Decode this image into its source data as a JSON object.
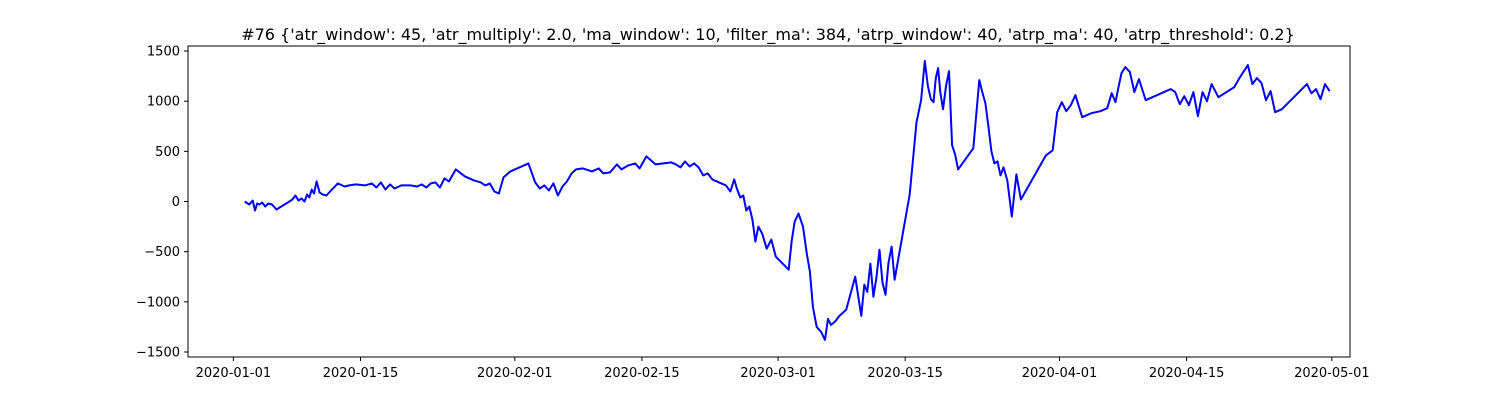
{
  "chart_data": {
    "type": "line",
    "title": "#76 {'atr_window': 45, 'atr_multiply': 2.0, 'ma_window': 10, 'filter_ma': 384, 'atrp_window': 40, 'atrp_ma': 40, 'atrp_threshold': 0.2}",
    "xlabel": "",
    "ylabel": "",
    "x_axis_type": "date",
    "xlim": [
      "2019-12-27",
      "2020-05-03"
    ],
    "ylim": [
      -1550,
      1550
    ],
    "xticks": [
      "2020-01-01",
      "2020-01-15",
      "2020-02-01",
      "2020-02-15",
      "2020-03-01",
      "2020-03-15",
      "2020-04-01",
      "2020-04-15",
      "2020-05-01"
    ],
    "yticks": [
      -1500,
      -1000,
      -500,
      0,
      500,
      1000,
      1500
    ],
    "ytick_labels": [
      "−1500",
      "−1000",
      "−500",
      "0",
      "500",
      "1000",
      "1500"
    ],
    "grid": false,
    "legend": "none",
    "color": "#0000ff",
    "series": [
      {
        "x": [
          "2020-01-02",
          "2020-01-02",
          "2020-01-03",
          "2020-01-03",
          "2020-01-03",
          "2020-01-03",
          "2020-01-04",
          "2020-01-04",
          "2020-01-04",
          "2020-01-05",
          "2020-01-05",
          "2020-01-07",
          "2020-01-07",
          "2020-01-07",
          "2020-01-08",
          "2020-01-08",
          "2020-01-08",
          "2020-01-09",
          "2020-01-09",
          "2020-01-09",
          "2020-01-09",
          "2020-01-10",
          "2020-01-10",
          "2020-01-10",
          "2020-01-11",
          "2020-01-11",
          "2020-01-12",
          "2020-01-13",
          "2020-01-13",
          "2020-01-14",
          "2020-01-15",
          "2020-01-16",
          "2020-01-16",
          "2020-01-17",
          "2020-01-17",
          "2020-01-18",
          "2020-01-18",
          "2020-01-19",
          "2020-01-20",
          "2020-01-21",
          "2020-01-21",
          "2020-01-22",
          "2020-01-22",
          "2020-01-23",
          "2020-01-23",
          "2020-01-24",
          "2020-01-24",
          "2020-01-25",
          "2020-01-26",
          "2020-01-27",
          "2020-01-28",
          "2020-01-28",
          "2020-01-29",
          "2020-01-29",
          "2020-01-30",
          "2020-01-30",
          "2020-01-31",
          "2020-02-02",
          "2020-02-03",
          "2020-02-03",
          "2020-02-04",
          "2020-02-04",
          "2020-02-05",
          "2020-02-05",
          "2020-02-06",
          "2020-02-06",
          "2020-02-07",
          "2020-02-07",
          "2020-02-08",
          "2020-02-09",
          "2020-02-10",
          "2020-02-10",
          "2020-02-11",
          "2020-02-12",
          "2020-02-12",
          "2020-02-13",
          "2020-02-14",
          "2020-02-14",
          "2020-02-15",
          "2020-02-16",
          "2020-02-18",
          "2020-02-18",
          "2020-02-19",
          "2020-02-19",
          "2020-02-20",
          "2020-02-20",
          "2020-02-21",
          "2020-02-21",
          "2020-02-22",
          "2020-02-22",
          "2020-02-24",
          "2020-02-24",
          "2020-02-25",
          "2020-02-25",
          "2020-02-25",
          "2020-02-26",
          "2020-02-26",
          "2020-02-26",
          "2020-02-27",
          "2020-02-27",
          "2020-02-27",
          "2020-02-28",
          "2020-02-28",
          "2020-02-29",
          "2020-02-29",
          "2020-03-02",
          "2020-03-02",
          "2020-03-02",
          "2020-03-03",
          "2020-03-03",
          "2020-03-04",
          "2020-03-04",
          "2020-03-04",
          "2020-03-05",
          "2020-03-05",
          "2020-03-06",
          "2020-03-06",
          "2020-03-06",
          "2020-03-07",
          "2020-03-07",
          "2020-03-08",
          "2020-03-09",
          "2020-03-10",
          "2020-03-10",
          "2020-03-10",
          "2020-03-11",
          "2020-03-11",
          "2020-03-11",
          "2020-03-12",
          "2020-03-12",
          "2020-03-12",
          "2020-03-13",
          "2020-03-13",
          "2020-03-13",
          "2020-03-15",
          "2020-03-16",
          "2020-03-16",
          "2020-03-17",
          "2020-03-17",
          "2020-03-17",
          "2020-03-18",
          "2020-03-18",
          "2020-03-18",
          "2020-03-18",
          "2020-03-19",
          "2020-03-19",
          "2020-03-19",
          "2020-03-20",
          "2020-03-20",
          "2020-03-20",
          "2020-03-22",
          "2020-03-23",
          "2020-03-23",
          "2020-03-23",
          "2020-03-24",
          "2020-03-24",
          "2020-03-24",
          "2020-03-25",
          "2020-03-25",
          "2020-03-25",
          "2020-03-26",
          "2020-03-26",
          "2020-03-27",
          "2020-03-27",
          "2020-03-30",
          "2020-03-31",
          "2020-03-31",
          "2020-04-01",
          "2020-04-01",
          "2020-04-02",
          "2020-04-02",
          "2020-04-03",
          "2020-04-04",
          "2020-04-05",
          "2020-04-06",
          "2020-04-06",
          "2020-04-07",
          "2020-04-07",
          "2020-04-07",
          "2020-04-08",
          "2020-04-08",
          "2020-04-09",
          "2020-04-09",
          "2020-04-10",
          "2020-04-13",
          "2020-04-13",
          "2020-04-14",
          "2020-04-14",
          "2020-04-15",
          "2020-04-15",
          "2020-04-16",
          "2020-04-16",
          "2020-04-17",
          "2020-04-17",
          "2020-04-18",
          "2020-04-20",
          "2020-04-20",
          "2020-04-21",
          "2020-04-21",
          "2020-04-22",
          "2020-04-22",
          "2020-04-23",
          "2020-04-23",
          "2020-04-24",
          "2020-04-24",
          "2020-04-25",
          "2020-04-28",
          "2020-04-28",
          "2020-04-29",
          "2020-04-29",
          "2020-04-30",
          "2020-04-30"
        ],
        "y": [
          0,
          -30,
          10,
          -90,
          -20,
          -30,
          -10,
          -50,
          -20,
          -30,
          -80,
          0,
          20,
          60,
          10,
          30,
          0,
          70,
          40,
          120,
          80,
          200,
          90,
          70,
          60,
          110,
          180,
          150,
          160,
          170,
          160,
          180,
          140,
          190,
          120,
          170,
          130,
          160,
          160,
          150,
          170,
          140,
          180,
          190,
          140,
          230,
          200,
          320,
          250,
          210,
          190,
          160,
          180,
          100,
          80,
          240,
          300,
          380,
          190,
          130,
          160,
          110,
          180,
          60,
          150,
          200,
          280,
          320,
          330,
          300,
          330,
          280,
          290,
          370,
          320,
          360,
          380,
          330,
          450,
          370,
          390,
          370,
          340,
          400,
          350,
          380,
          340,
          260,
          280,
          220,
          160,
          100,
          220,
          120,
          40,
          60,
          -90,
          -50,
          -180,
          -400,
          -250,
          -320,
          -470,
          -380,
          -550,
          -680,
          -390,
          -200,
          -120,
          -250,
          -520,
          -700,
          -1050,
          -1250,
          -1300,
          -1380,
          -1170,
          -1230,
          -1200,
          -1140,
          -1080,
          -750,
          -1140,
          -830,
          -900,
          -620,
          -950,
          -760,
          -480,
          -810,
          -930,
          -610,
          -450,
          -780,
          70,
          790,
          1010,
          1400,
          1150,
          1020,
          990,
          1230,
          1330,
          1090,
          920,
          1150,
          1300,
          560,
          470,
          320,
          530,
          1210,
          1090,
          980,
          750,
          500,
          380,
          400,
          260,
          340,
          210,
          -150,
          270,
          20,
          460,
          510,
          890,
          990,
          900,
          960,
          1060,
          840,
          880,
          900,
          930,
          1080,
          990,
          1140,
          1280,
          1340,
          1290,
          1090,
          1220,
          1010,
          1120,
          1090,
          970,
          1050,
          960,
          1090,
          850,
          1090,
          1000,
          1170,
          1040,
          1140,
          1220,
          1290,
          1360,
          1170,
          1230,
          1180,
          1010,
          1100,
          890,
          920,
          1170,
          1080,
          1120,
          1020,
          1170,
          1100
        ],
        "name": ""
      }
    ]
  }
}
